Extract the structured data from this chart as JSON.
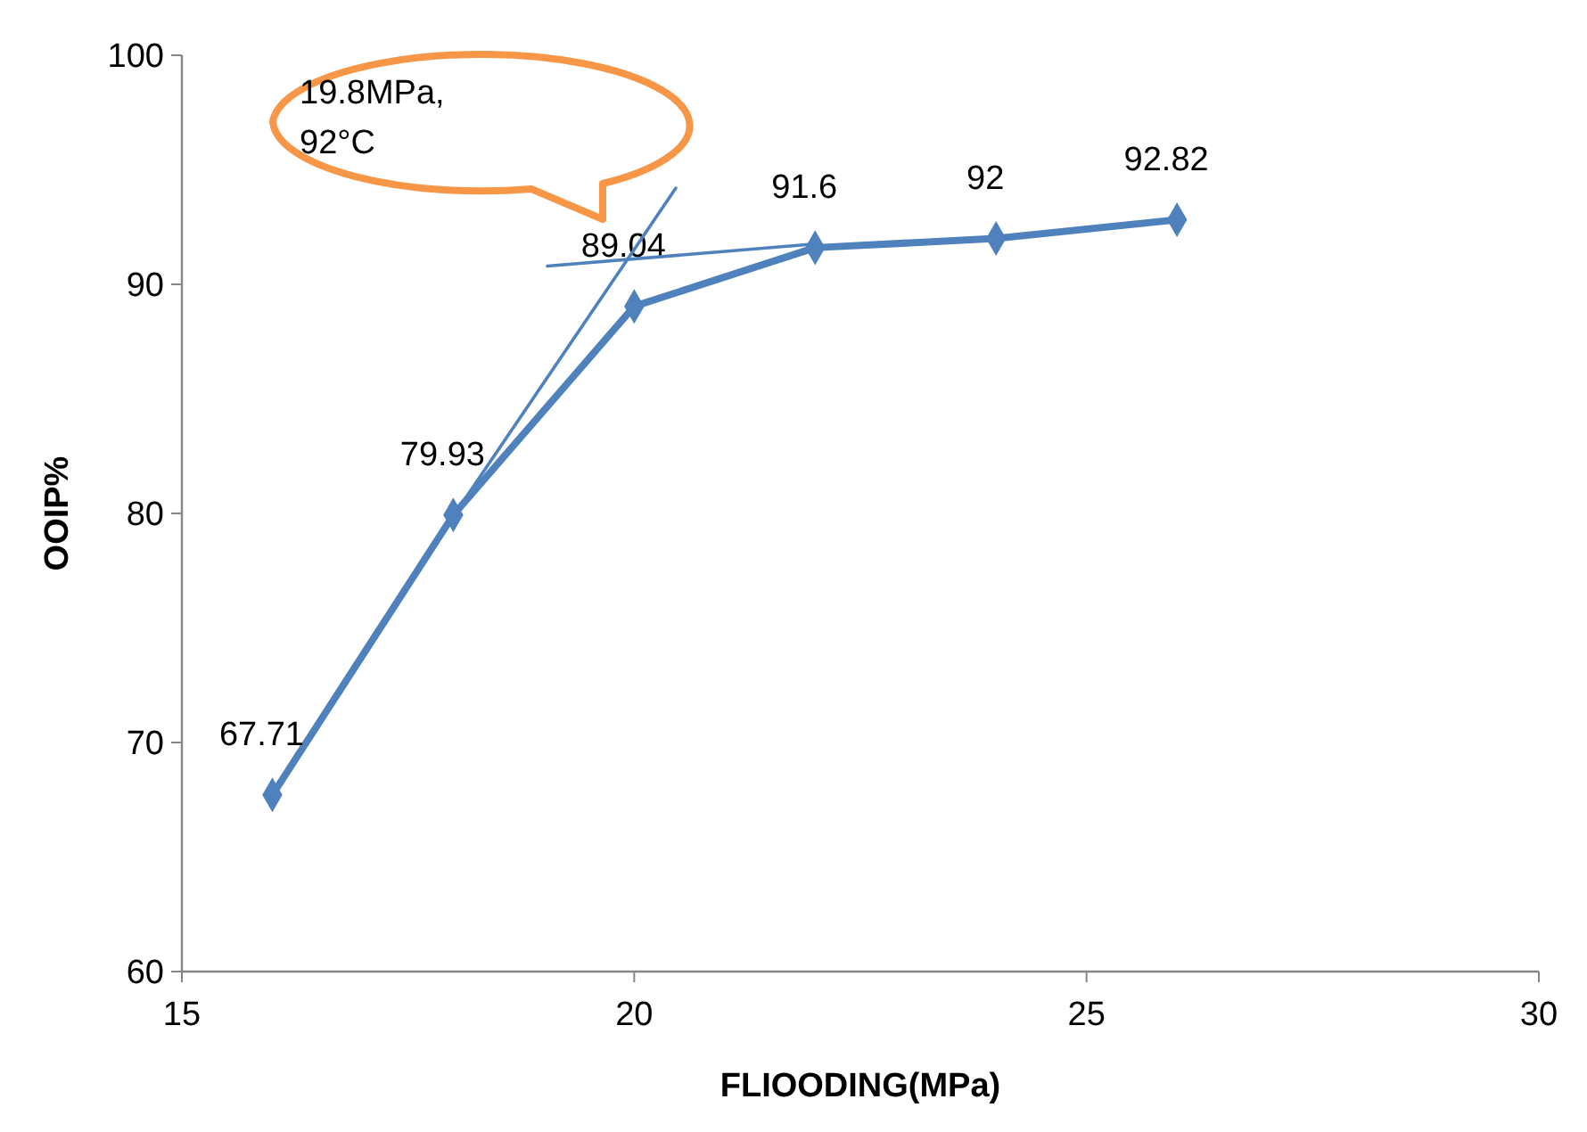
{
  "chart_data": {
    "type": "line",
    "xlabel": "FLIOODING(MPa)",
    "ylabel": "OOIP%",
    "xlim": [
      15,
      30
    ],
    "xticks": [
      15,
      20,
      25,
      30
    ],
    "ylim": [
      60,
      100
    ],
    "yticks": [
      60,
      70,
      80,
      90,
      100
    ],
    "grid": false,
    "annotations": [
      "19.8MPa,\n92°C"
    ],
    "series": [
      {
        "color": "#4f81bd",
        "x": [
          16,
          18,
          20,
          22,
          24,
          26
        ],
        "values": [
          67.71,
          79.93,
          89.04,
          91.6,
          92,
          92.82
        ],
        "value_labels": [
          "67.71",
          "79.93",
          "89.04",
          "91.6",
          "92",
          "92.82"
        ],
        "marker": "diamond",
        "line_style": "solid"
      },
      {
        "color": "#4f81bd",
        "x": [
          17.9,
          20.46
        ],
        "values": [
          79.3,
          94.2
        ],
        "marker": "none",
        "line_style": "solid"
      },
      {
        "color": "#4f81bd",
        "x": [
          19.04,
          21.96
        ],
        "values": [
          90.8,
          91.75
        ],
        "marker": "none",
        "line_style": "solid"
      }
    ]
  }
}
